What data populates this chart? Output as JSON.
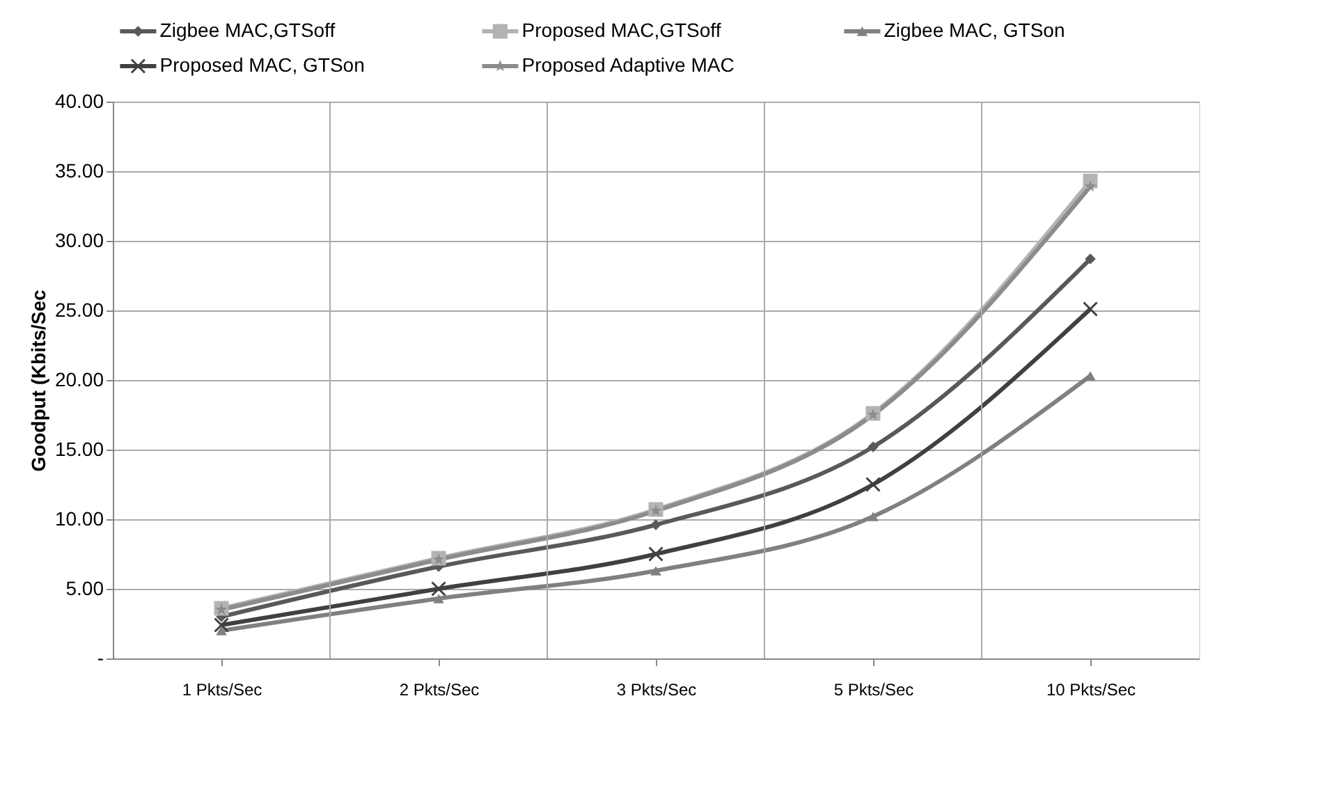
{
  "chart_data": {
    "type": "line",
    "ylabel": "Goodput (Kbits/Sec",
    "categories": [
      "1 Pkts/Sec",
      "2 Pkts/Sec",
      "3 Pkts/Sec",
      "5 Pkts/Sec",
      "10 Pkts/Sec"
    ],
    "series": [
      {
        "name": "Zigbee MAC,GTSoff",
        "color": "#595959",
        "marker": "diamond",
        "values": [
          3.0,
          6.6,
          9.6,
          15.2,
          28.7
        ]
      },
      {
        "name": "Proposed MAC,GTSoff",
        "color": "#b3b3b3",
        "marker": "square",
        "values": [
          3.6,
          7.2,
          10.7,
          17.6,
          34.3
        ]
      },
      {
        "name": "Zigbee MAC, GTSon",
        "color": "#808080",
        "marker": "triangle",
        "values": [
          2.0,
          4.3,
          6.3,
          10.2,
          20.3
        ]
      },
      {
        "name": "Proposed MAC, GTSon",
        "color": "#404040",
        "marker": "cross",
        "values": [
          2.4,
          5.0,
          7.5,
          12.5,
          25.1
        ]
      },
      {
        "name": "Proposed Adaptive MAC",
        "color": "#8c8c8c",
        "marker": "star",
        "values": [
          3.5,
          7.1,
          10.6,
          17.5,
          33.9
        ]
      }
    ],
    "ylim": [
      0,
      40
    ],
    "yticks": [
      {
        "value": 0,
        "label": "-"
      },
      {
        "value": 5,
        "label": "5.00"
      },
      {
        "value": 10,
        "label": "10.00"
      },
      {
        "value": 15,
        "label": "15.00"
      },
      {
        "value": 20,
        "label": "20.00"
      },
      {
        "value": 25,
        "label": "25.00"
      },
      {
        "value": 30,
        "label": "30.00"
      },
      {
        "value": 35,
        "label": "35.00"
      },
      {
        "value": 40,
        "label": "40.00"
      }
    ],
    "grid": true,
    "legend": "top",
    "line_style": "solid"
  }
}
